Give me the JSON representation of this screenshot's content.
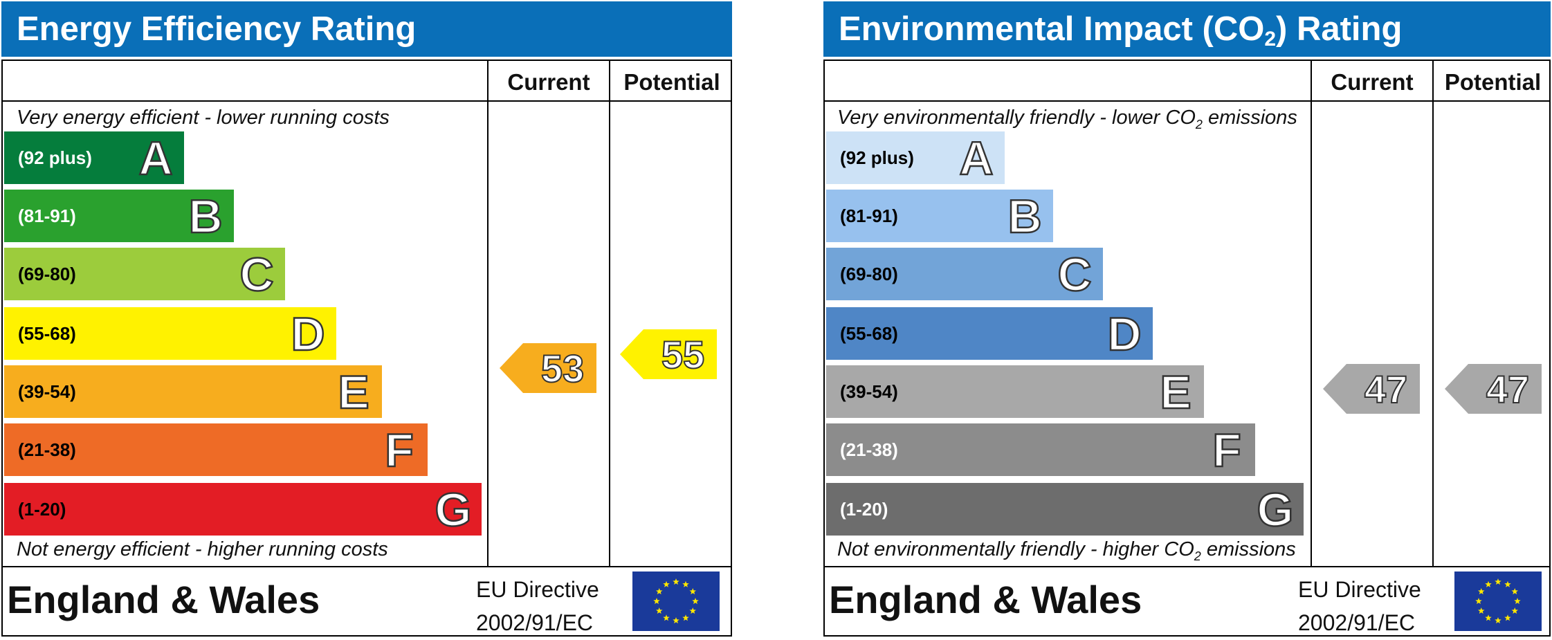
{
  "energy": {
    "title": "Energy Efficiency Rating",
    "col_current": "Current",
    "col_potential": "Potential",
    "top_note": "Very energy efficient - lower running costs",
    "bottom_note": "Not energy efficient - higher running costs",
    "bands": [
      {
        "range": "(92 plus)",
        "letter": "A",
        "color": "#057d3c",
        "text_color": "#ffffff"
      },
      {
        "range": "(81-91)",
        "letter": "B",
        "color": "#2aa12e",
        "text_color": "#ffffff"
      },
      {
        "range": "(69-80)",
        "letter": "C",
        "color": "#9ccc3c",
        "text_color": "#000000"
      },
      {
        "range": "(55-68)",
        "letter": "D",
        "color": "#fff200",
        "text_color": "#000000"
      },
      {
        "range": "(39-54)",
        "letter": "E",
        "color": "#f7ad1e",
        "text_color": "#000000"
      },
      {
        "range": "(21-38)",
        "letter": "F",
        "color": "#ee6b26",
        "text_color": "#000000"
      },
      {
        "range": "(1-20)",
        "letter": "G",
        "color": "#e31d25",
        "text_color": "#000000"
      }
    ],
    "current_value": "53",
    "current_color": "#f7ad1e",
    "potential_value": "55",
    "potential_color": "#fff200",
    "region": "England & Wales",
    "directive_line1": "EU Directive",
    "directive_line2": "2002/91/EC"
  },
  "environment": {
    "title_part1": "Environmental Impact (CO",
    "title_sub": "2",
    "title_part2": ") Rating",
    "col_current": "Current",
    "col_potential": "Potential",
    "top_note_part1": "Very environmentally friendly - lower CO",
    "top_note_sub": "2",
    "top_note_part2": " emissions",
    "bottom_note_part1": "Not environmentally friendly - higher CO",
    "bottom_note_sub": "2",
    "bottom_note_part2": " emissions",
    "bands": [
      {
        "range": "(92 plus)",
        "letter": "A",
        "color": "#cde2f6",
        "text_color": "#000000"
      },
      {
        "range": "(81-91)",
        "letter": "B",
        "color": "#97c1ee",
        "text_color": "#000000"
      },
      {
        "range": "(69-80)",
        "letter": "C",
        "color": "#72a4d8",
        "text_color": "#000000"
      },
      {
        "range": "(55-68)",
        "letter": "D",
        "color": "#4f86c6",
        "text_color": "#000000"
      },
      {
        "range": "(39-54)",
        "letter": "E",
        "color": "#a8a8a8",
        "text_color": "#000000"
      },
      {
        "range": "(21-38)",
        "letter": "F",
        "color": "#8c8c8c",
        "text_color": "#ffffff"
      },
      {
        "range": "(1-20)",
        "letter": "G",
        "color": "#6d6d6d",
        "text_color": "#ffffff"
      }
    ],
    "current_value": "47",
    "current_color": "#a8a8a8",
    "potential_value": "47",
    "potential_color": "#a8a8a8",
    "region": "England & Wales",
    "directive_line1": "EU Directive",
    "directive_line2": "2002/91/EC"
  }
}
